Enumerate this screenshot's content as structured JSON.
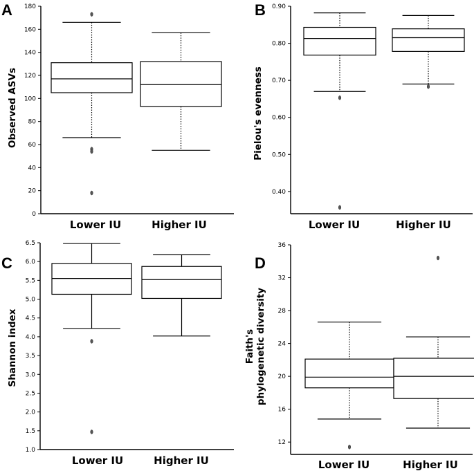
{
  "chart_data": [
    {
      "type": "box",
      "panel": "A",
      "ylabel": "Observed ASVs",
      "ylim": [
        0,
        180
      ],
      "yticks": [
        0,
        20,
        40,
        60,
        80,
        100,
        120,
        140,
        160,
        180
      ],
      "categories": [
        "Lower IU",
        "Higher IU"
      ],
      "whisker_style": "dotted",
      "boxes": [
        {
          "name": "Lower IU",
          "min": 66,
          "q1": 105,
          "median": 117,
          "q3": 131,
          "max": 166,
          "outliers": [
            173,
            56,
            54,
            18
          ]
        },
        {
          "name": "Higher IU",
          "min": 55,
          "q1": 93,
          "median": 112,
          "q3": 132,
          "max": 157,
          "outliers": []
        }
      ]
    },
    {
      "type": "box",
      "panel": "B",
      "ylabel": "Pielou's evenness",
      "ylim": [
        0.34,
        0.9
      ],
      "yticks": [
        0.4,
        0.5,
        0.6,
        0.7,
        0.8,
        0.9
      ],
      "tick_labels": [
        "0.40",
        "0.50",
        "0.60",
        "0.70",
        "0.80",
        "0.90"
      ],
      "categories": [
        "Lower IU",
        "Higher IU"
      ],
      "whisker_style": "dotted",
      "boxes": [
        {
          "name": "Lower IU",
          "min": 0.67,
          "q1": 0.768,
          "median": 0.813,
          "q3": 0.843,
          "max": 0.882,
          "outliers": [
            0.653,
            0.357
          ]
        },
        {
          "name": "Higher IU",
          "min": 0.69,
          "q1": 0.778,
          "median": 0.815,
          "q3": 0.839,
          "max": 0.875,
          "outliers": [
            0.683
          ]
        }
      ]
    },
    {
      "type": "box",
      "panel": "C",
      "ylabel": "Shannon index",
      "ylim": [
        1.0,
        6.5
      ],
      "yticks": [
        1.0,
        1.5,
        2.0,
        2.5,
        3.0,
        3.5,
        4.0,
        4.5,
        5.0,
        5.5,
        6.0,
        6.5
      ],
      "tick_labels": [
        "1.0",
        "1.5",
        "2.0",
        "2.5",
        "3.0",
        "3.5",
        "4.0",
        "4.5",
        "5.0",
        "5.5",
        "6.0",
        "6.5"
      ],
      "categories": [
        "Lower IU",
        "Higher IU"
      ],
      "whisker_style": "solid",
      "boxes": [
        {
          "name": "Lower IU",
          "min": 4.22,
          "q1": 5.13,
          "median": 5.55,
          "q3": 5.95,
          "max": 6.48,
          "outliers": [
            3.88,
            1.47
          ]
        },
        {
          "name": "Higher IU",
          "min": 4.02,
          "q1": 5.02,
          "median": 5.52,
          "q3": 5.87,
          "max": 6.18,
          "outliers": []
        }
      ]
    },
    {
      "type": "box",
      "panel": "D",
      "ylabel_lines": [
        "Faith's",
        "phylogenetic diversity"
      ],
      "ylim": [
        10.5,
        36
      ],
      "yticks": [
        12,
        16,
        20,
        24,
        28,
        32,
        36
      ],
      "categories": [
        "Lower IU",
        "Higher IU"
      ],
      "whisker_style": "dotted",
      "boxes": [
        {
          "name": "Lower IU",
          "min": 14.8,
          "q1": 18.6,
          "median": 19.9,
          "q3": 22.1,
          "max": 26.6,
          "outliers": [
            11.4
          ]
        },
        {
          "name": "Higher IU",
          "min": 13.7,
          "q1": 17.3,
          "median": 20.0,
          "q3": 22.2,
          "max": 24.8,
          "outliers": [
            34.4
          ]
        }
      ]
    }
  ]
}
